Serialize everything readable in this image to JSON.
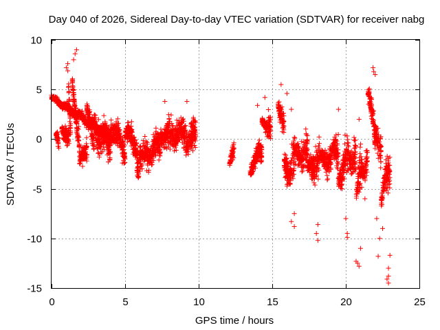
{
  "chart_data": {
    "type": "scatter",
    "title": "Day 040 of 2026, Sidereal Day-to-day VTEC variation (SDTVAR) for receiver nabg",
    "xlabel": "GPS time / hours",
    "ylabel": "SDTVAR / TECUs",
    "xlim": [
      0,
      25
    ],
    "ylim": [
      -15,
      10
    ],
    "xticks": [
      0,
      5,
      10,
      15,
      20,
      25
    ],
    "yticks": [
      -15,
      -10,
      -5,
      0,
      5,
      10
    ],
    "xtick_labels": [
      "0",
      "5",
      "10",
      "15",
      "20",
      "25"
    ],
    "ytick_labels": [
      "-15",
      "-10",
      "-5",
      "0",
      "5",
      "10"
    ],
    "grid": true,
    "marker": "+",
    "color": "#ff0000",
    "series": [
      {
        "name": "SDTVAR",
        "segments": [
          [
            0.0,
            4.0,
            0.3,
            4.2,
            0.8,
            0.3
          ],
          [
            0.3,
            0.5,
            0.2,
            0.5,
            1.3,
            -0.3
          ],
          [
            0.7,
            1.2,
            0.4,
            1.2,
            2.0,
            -0.8
          ],
          [
            1.1,
            1.3,
            0.6,
            6.5,
            2.0,
            0.5
          ],
          [
            1.4,
            1.9,
            0.6,
            6.2,
            1.5,
            -1.5
          ],
          [
            1.9,
            2.4,
            0.6,
            -2.5,
            1.5,
            -0.5
          ],
          [
            2.4,
            2.9,
            1.0,
            3.5,
            1.6,
            -1.0
          ],
          [
            2.9,
            4.0,
            2.0,
            1.0,
            1.8,
            -0.8
          ],
          [
            4.0,
            5.0,
            1.5,
            1.5,
            1.5,
            -1.2
          ],
          [
            5.0,
            5.8,
            1.2,
            1.0,
            1.5,
            -0.8
          ],
          [
            5.8,
            7.4,
            2.0,
            -2.3,
            1.3,
            -0.5
          ],
          [
            7.4,
            8.1,
            1.0,
            0.5,
            1.8,
            0.0
          ],
          [
            8.1,
            9.8,
            1.5,
            0.8,
            2.0,
            0.0
          ],
          [
            12.1,
            12.4,
            0.3,
            -2.5,
            1.2,
            -1.2
          ],
          [
            13.5,
            14.3,
            0.8,
            -3.0,
            1.5,
            -1.0
          ],
          [
            14.3,
            14.9,
            0.4,
            2.0,
            1.8,
            0.8
          ],
          [
            15.4,
            15.8,
            0.6,
            3.5,
            2.0,
            0.5
          ],
          [
            15.8,
            16.6,
            1.5,
            -3.0,
            2.5,
            -2.0
          ],
          [
            16.6,
            17.4,
            1.0,
            -1.5,
            2.5,
            -1.5
          ],
          [
            17.4,
            18.2,
            0.8,
            -3.0,
            2.5,
            -2.0
          ],
          [
            18.2,
            19.0,
            0.8,
            -2.0,
            2.0,
            -2.0
          ],
          [
            19.0,
            19.5,
            0.6,
            -1.5,
            2.5,
            -1.0
          ],
          [
            19.5,
            20.2,
            0.8,
            -4.0,
            3.0,
            -1.8
          ],
          [
            20.2,
            20.7,
            1.0,
            -2.0,
            2.5,
            -1.5
          ],
          [
            20.7,
            21.1,
            0.8,
            -6.0,
            3.5,
            -2.5
          ],
          [
            21.1,
            21.5,
            0.6,
            -3.5,
            2.5,
            -1.5
          ],
          [
            21.5,
            22.0,
            1.2,
            5.0,
            2.0,
            0.0
          ],
          [
            22.0,
            22.4,
            1.0,
            1.0,
            2.5,
            -1.0
          ],
          [
            22.4,
            23.0,
            0.6,
            -6.5,
            3.0,
            -2.0
          ]
        ],
        "extreme_points": [
          [
            1.7,
            9.0
          ],
          [
            1.6,
            8.6
          ],
          [
            1.5,
            8.0
          ],
          [
            1.1,
            7.6
          ],
          [
            1.0,
            7.2
          ],
          [
            7.7,
            3.8
          ],
          [
            9.2,
            3.8
          ],
          [
            14.0,
            3.4
          ],
          [
            14.5,
            4.2
          ],
          [
            15.6,
            5.5
          ],
          [
            16.0,
            4.6
          ],
          [
            16.3,
            3.0
          ],
          [
            16.5,
            -7.5
          ],
          [
            16.5,
            -8.8
          ],
          [
            16.3,
            -8.3
          ],
          [
            18.1,
            -10.2
          ],
          [
            18.0,
            -9.5
          ],
          [
            18.1,
            -8.6
          ],
          [
            19.5,
            3.0
          ],
          [
            20.0,
            -8.0
          ],
          [
            20.1,
            -9.5
          ],
          [
            20.1,
            -9.9
          ],
          [
            20.8,
            -12.5
          ],
          [
            20.9,
            -12.8
          ],
          [
            20.7,
            -12.3
          ],
          [
            21.0,
            -11.0
          ],
          [
            20.9,
            2.0
          ],
          [
            21.3,
            -6.0
          ],
          [
            21.85,
            7.2
          ],
          [
            21.9,
            6.8
          ],
          [
            22.0,
            6.5
          ],
          [
            22.2,
            -11.8
          ],
          [
            22.3,
            -10.0
          ],
          [
            22.1,
            -8.0
          ],
          [
            22.9,
            -14.5
          ],
          [
            22.8,
            -14.1
          ],
          [
            22.9,
            -13.8
          ],
          [
            22.9,
            -13.0
          ],
          [
            23.0,
            -11.7
          ],
          [
            22.5,
            -9.0
          ]
        ]
      }
    ]
  }
}
